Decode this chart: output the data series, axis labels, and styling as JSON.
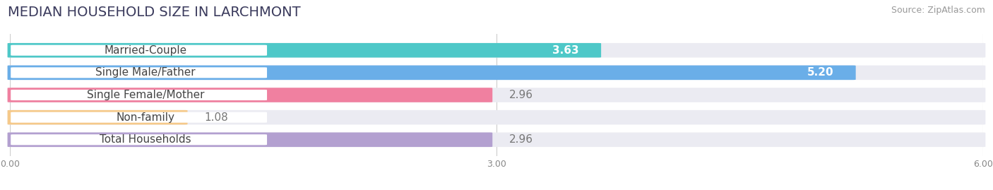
{
  "title": "MEDIAN HOUSEHOLD SIZE IN LARCHMONT",
  "source": "Source: ZipAtlas.com",
  "categories": [
    "Married-Couple",
    "Single Male/Father",
    "Single Female/Mother",
    "Non-family",
    "Total Households"
  ],
  "values": [
    3.63,
    5.2,
    2.96,
    1.08,
    2.96
  ],
  "bar_colors": [
    "#4ec8c8",
    "#6aaee8",
    "#f080a0",
    "#f5c98a",
    "#b3a0d0"
  ],
  "bar_bg_colors": [
    "#ececf4",
    "#ececf4",
    "#ececf4",
    "#ececf4",
    "#ececf4"
  ],
  "xlim": [
    0,
    6.0
  ],
  "xticks": [
    0.0,
    3.0,
    6.0
  ],
  "xtick_labels": [
    "0.00",
    "3.00",
    "6.00"
  ],
  "label_inside_threshold": 3.5,
  "label_inside_color": "#ffffff",
  "label_outside_color": "#777777",
  "title_fontsize": 14,
  "bar_label_fontsize": 11,
  "category_fontsize": 11,
  "source_fontsize": 9,
  "background_color": "#ffffff",
  "bar_height": 0.62,
  "bar_gap": 0.12
}
